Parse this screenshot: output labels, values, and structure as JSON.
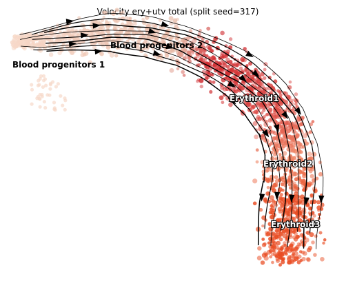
{
  "chart_data": {
    "type": "scatter",
    "title": "Velocity ery+utv total (split seed=317)",
    "xlabel": "",
    "ylabel": "",
    "grid": false,
    "axes_visible": false,
    "overlay": "velocity-streamlines",
    "colors": {
      "blood_progenitors": "#f7d9c9",
      "erythroid1": "#cf2a2f",
      "erythroid2": "#ee8566",
      "erythroid3": "#e94d24",
      "streamline": "#000000"
    },
    "clusters": [
      {
        "name": "Blood progenitors 1",
        "label_color": "#000000"
      },
      {
        "name": "Blood progenitors 2",
        "label_color": "#000000"
      },
      {
        "name": "Erythroid1",
        "label_color": "#ffffff"
      },
      {
        "name": "Erythroid2",
        "label_color": "#ffffff"
      },
      {
        "name": "Erythroid3",
        "label_color": "#ffffff"
      }
    ]
  }
}
